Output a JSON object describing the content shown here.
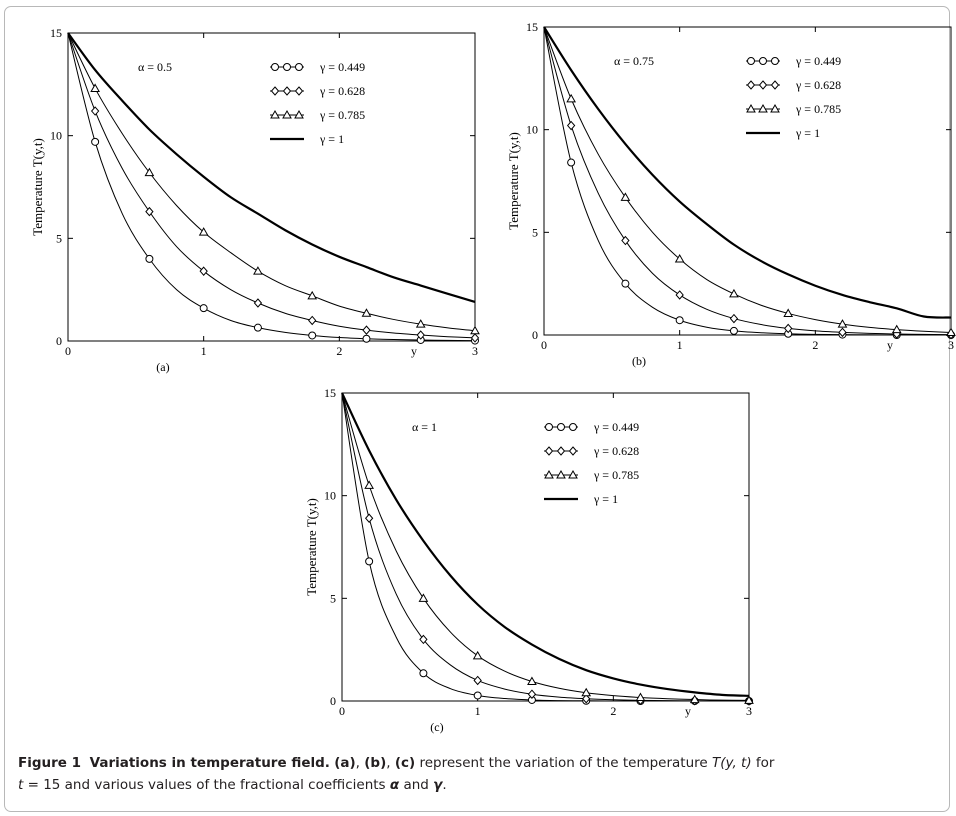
{
  "chart_data": [
    {
      "type": "line",
      "panel_label": "(a)",
      "alpha_label": "α = 0.5",
      "xlabel": "y",
      "ylabel": "Temperature T(y,t)",
      "xlim": [
        0,
        3
      ],
      "ylim": [
        0,
        15
      ],
      "xticks": [
        "0",
        "1",
        "2",
        "3"
      ],
      "yticks": [
        "0",
        "5",
        "10",
        "15"
      ],
      "legend_position": "top-right",
      "series": [
        {
          "name": "γ = 0.449",
          "marker": "circle",
          "x": [
            0,
            0.2,
            0.4,
            0.6,
            0.8,
            1.0,
            1.2,
            1.4,
            1.6,
            1.8,
            2.0,
            2.2,
            2.4,
            2.6,
            2.8,
            3.0
          ],
          "values": [
            15,
            9.7,
            6.2,
            4.0,
            2.5,
            1.6,
            1.0,
            0.65,
            0.42,
            0.27,
            0.17,
            0.11,
            0.07,
            0.05,
            0.03,
            0.02
          ]
        },
        {
          "name": "γ = 0.628",
          "marker": "diamond",
          "x": [
            0,
            0.2,
            0.4,
            0.6,
            0.8,
            1.0,
            1.2,
            1.4,
            1.6,
            1.8,
            2.0,
            2.2,
            2.4,
            2.6,
            2.8,
            3.0
          ],
          "values": [
            15,
            11.2,
            8.4,
            6.3,
            4.6,
            3.4,
            2.5,
            1.85,
            1.35,
            1.0,
            0.72,
            0.53,
            0.39,
            0.29,
            0.21,
            0.15
          ]
        },
        {
          "name": "γ = 0.785",
          "marker": "triangle",
          "x": [
            0,
            0.2,
            0.4,
            0.6,
            0.8,
            1.0,
            1.2,
            1.4,
            1.6,
            1.8,
            2.0,
            2.2,
            2.4,
            2.6,
            2.8,
            3.0
          ],
          "values": [
            15,
            12.3,
            10.1,
            8.2,
            6.6,
            5.3,
            4.3,
            3.4,
            2.7,
            2.2,
            1.7,
            1.35,
            1.05,
            0.82,
            0.64,
            0.5
          ]
        },
        {
          "name": "γ = 1",
          "marker": "none",
          "x": [
            0,
            0.2,
            0.4,
            0.6,
            0.8,
            1.0,
            1.2,
            1.4,
            1.6,
            1.8,
            2.0,
            2.2,
            2.4,
            2.6,
            2.8,
            3.0
          ],
          "values": [
            15,
            13.2,
            11.7,
            10.3,
            9.1,
            8.0,
            7.0,
            6.2,
            5.4,
            4.7,
            4.1,
            3.6,
            3.1,
            2.7,
            2.3,
            1.9
          ]
        }
      ]
    },
    {
      "type": "line",
      "panel_label": "(b)",
      "alpha_label": "α = 0.75",
      "xlabel": "y",
      "ylabel": "Temperature T(y,t)",
      "xlim": [
        0,
        3
      ],
      "ylim": [
        0,
        15
      ],
      "xticks": [
        "0",
        "1",
        "2",
        "3"
      ],
      "yticks": [
        "0",
        "5",
        "10",
        "15"
      ],
      "legend_position": "top-right",
      "series": [
        {
          "name": "γ = 0.449",
          "marker": "circle",
          "x": [
            0,
            0.2,
            0.4,
            0.6,
            0.8,
            1.0,
            1.2,
            1.4,
            1.6,
            1.8,
            2.0,
            2.2,
            2.4,
            2.6,
            2.8,
            3.0
          ],
          "values": [
            15,
            8.4,
            4.6,
            2.5,
            1.35,
            0.72,
            0.38,
            0.2,
            0.11,
            0.06,
            0.03,
            0.02,
            0.01,
            0.0,
            0.0,
            0.0
          ]
        },
        {
          "name": "γ = 0.628",
          "marker": "diamond",
          "x": [
            0,
            0.2,
            0.4,
            0.6,
            0.8,
            1.0,
            1.2,
            1.4,
            1.6,
            1.8,
            2.0,
            2.2,
            2.4,
            2.6,
            2.8,
            3.0
          ],
          "values": [
            15,
            10.2,
            6.9,
            4.6,
            3.0,
            1.95,
            1.25,
            0.8,
            0.51,
            0.32,
            0.2,
            0.13,
            0.08,
            0.05,
            0.03,
            0.02
          ]
        },
        {
          "name": "γ = 0.785",
          "marker": "triangle",
          "x": [
            0,
            0.2,
            0.4,
            0.6,
            0.8,
            1.0,
            1.2,
            1.4,
            1.6,
            1.8,
            2.0,
            2.2,
            2.4,
            2.6,
            2.8,
            3.0
          ],
          "values": [
            15,
            11.5,
            8.8,
            6.7,
            5.0,
            3.7,
            2.7,
            2.0,
            1.45,
            1.05,
            0.75,
            0.53,
            0.37,
            0.26,
            0.18,
            0.12
          ]
        },
        {
          "name": "γ = 1",
          "marker": "none",
          "x": [
            0,
            0.2,
            0.4,
            0.6,
            0.8,
            1.0,
            1.2,
            1.4,
            1.6,
            1.8,
            2.0,
            2.2,
            2.4,
            2.6,
            2.8,
            3.0
          ],
          "values": [
            15,
            12.9,
            11.0,
            9.3,
            7.8,
            6.5,
            5.4,
            4.4,
            3.6,
            2.95,
            2.4,
            1.95,
            1.6,
            1.3,
            0.9,
            0.85
          ]
        }
      ]
    },
    {
      "type": "line",
      "panel_label": "(c)",
      "alpha_label": "α = 1",
      "xlabel": "y",
      "ylabel": "Temperature T(y,t)",
      "xlim": [
        0,
        3
      ],
      "ylim": [
        0,
        15
      ],
      "xticks": [
        "0",
        "1",
        "2",
        "3"
      ],
      "yticks": [
        "0",
        "5",
        "10",
        "15"
      ],
      "legend_position": "top-right",
      "series": [
        {
          "name": "γ = 0.449",
          "marker": "circle",
          "x": [
            0,
            0.2,
            0.4,
            0.6,
            0.8,
            1.0,
            1.2,
            1.4,
            1.6,
            1.8,
            2.0,
            2.2,
            2.4,
            2.6,
            2.8,
            3.0
          ],
          "values": [
            15,
            6.8,
            3.1,
            1.35,
            0.6,
            0.27,
            0.12,
            0.05,
            0.02,
            0.01,
            0.0,
            0.0,
            0.0,
            0.0,
            0.0,
            0.0
          ]
        },
        {
          "name": "γ = 0.628",
          "marker": "diamond",
          "x": [
            0,
            0.2,
            0.4,
            0.6,
            0.8,
            1.0,
            1.2,
            1.4,
            1.6,
            1.8,
            2.0,
            2.2,
            2.4,
            2.6,
            2.8,
            3.0
          ],
          "values": [
            15,
            8.9,
            5.2,
            3.0,
            1.75,
            1.0,
            0.58,
            0.33,
            0.19,
            0.11,
            0.06,
            0.03,
            0.02,
            0.01,
            0.0,
            0.0
          ]
        },
        {
          "name": "γ = 0.785",
          "marker": "triangle",
          "x": [
            0,
            0.2,
            0.4,
            0.6,
            0.8,
            1.0,
            1.2,
            1.4,
            1.6,
            1.8,
            2.0,
            2.2,
            2.4,
            2.6,
            2.8,
            3.0
          ],
          "values": [
            15,
            10.5,
            7.3,
            5.0,
            3.35,
            2.2,
            1.45,
            0.95,
            0.62,
            0.4,
            0.26,
            0.17,
            0.11,
            0.07,
            0.04,
            0.03
          ]
        },
        {
          "name": "γ = 1",
          "marker": "none",
          "x": [
            0,
            0.2,
            0.4,
            0.6,
            0.8,
            1.0,
            1.2,
            1.4,
            1.6,
            1.8,
            2.0,
            2.2,
            2.4,
            2.6,
            2.8,
            3.0
          ],
          "values": [
            15,
            12.2,
            9.8,
            7.8,
            6.1,
            4.7,
            3.6,
            2.75,
            2.05,
            1.5,
            1.1,
            0.8,
            0.58,
            0.42,
            0.3,
            0.25
          ]
        }
      ]
    }
  ],
  "caption": {
    "figure_label": "Figure 1",
    "heading": "Variations in temperature field.",
    "panel_a": "(a)",
    "sep_1": ", ",
    "panel_b": "(b)",
    "sep_2": ", ",
    "panel_c": "(c)",
    "text_1": " represent the variation of the temperature ",
    "temp_symbol": "T(y, t)",
    "text_2": " for",
    "t_symbol": "t",
    "text_3": " = 15 and various values of the fractional coefficients ",
    "alpha_symbol": "α",
    "text_4": " and ",
    "gamma_symbol": "γ",
    "text_5": "."
  }
}
